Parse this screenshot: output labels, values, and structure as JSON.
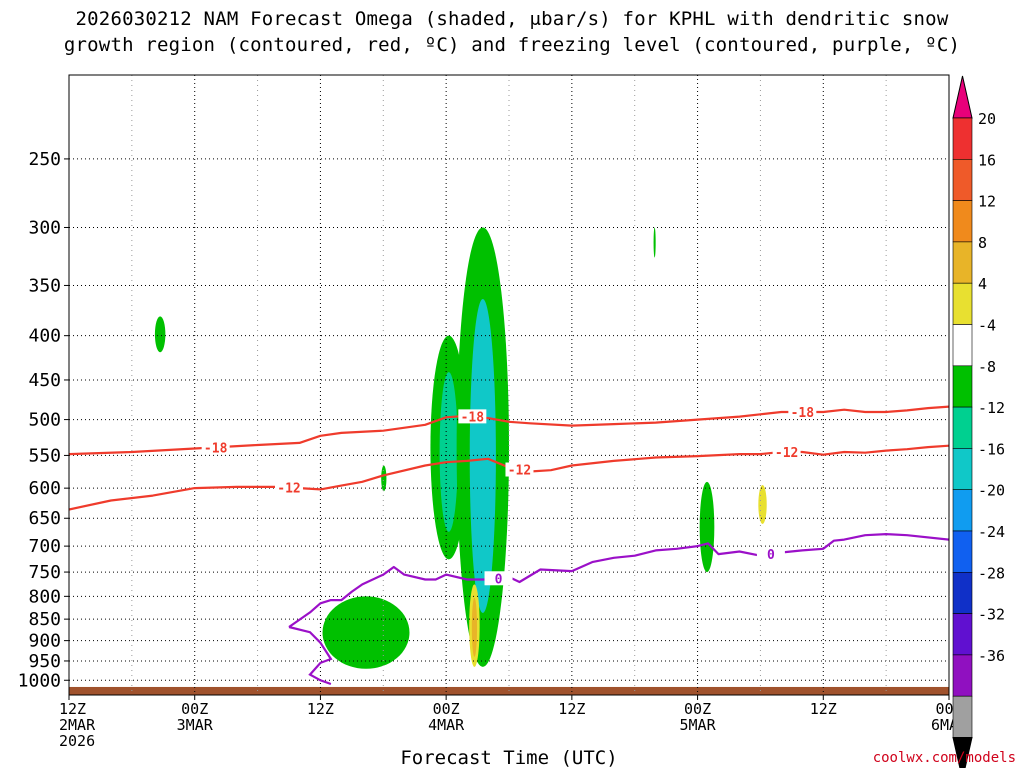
{
  "title_line1": "2026030212 NAM Forecast Omega (shaded, μbar/s) for KPHL with dendritic snow",
  "title_line2": "growth region (contoured, red, ºC) and freezing level (contoured, purple, ºC)",
  "credit": "coolwx.com/models",
  "chart_data": {
    "type": "time-height cross-section",
    "title": "2026030212 NAM Forecast Omega (shaded, μbar/s) for KPHL with dendritic snow growth region (contoured, red, ºC) and freezing level (contoured, purple, ºC)",
    "xlabel": "Forecast Time (UTC)",
    "ylabel": "",
    "xlim": [
      0,
      84
    ],
    "ylim": [
      1040,
      200
    ],
    "yscale": "log",
    "grid": true,
    "x_ticks": [
      {
        "hour": 0,
        "lines": [
          "12Z",
          "2MAR",
          "2026"
        ]
      },
      {
        "hour": 12,
        "lines": [
          "00Z",
          "3MAR"
        ]
      },
      {
        "hour": 24,
        "lines": [
          "12Z"
        ]
      },
      {
        "hour": 36,
        "lines": [
          "00Z",
          "4MAR"
        ]
      },
      {
        "hour": 48,
        "lines": [
          "12Z"
        ]
      },
      {
        "hour": 60,
        "lines": [
          "00Z",
          "5MAR"
        ]
      },
      {
        "hour": 72,
        "lines": [
          "12Z"
        ]
      },
      {
        "hour": 84,
        "lines": [
          "00Z",
          "6MAR"
        ]
      }
    ],
    "y_ticks": [
      250,
      300,
      350,
      400,
      450,
      500,
      550,
      600,
      650,
      700,
      750,
      800,
      850,
      900,
      950,
      1000
    ],
    "colorbar": {
      "labels": [
        "20",
        "16",
        "12",
        "8",
        "4",
        "-4",
        "-8",
        "-12",
        "-16",
        "-20",
        "-24",
        "-28",
        "-32",
        "-36"
      ],
      "colors": [
        "#e8007a",
        "#ee3030",
        "#ef5a29",
        "#f08a1c",
        "#e8b428",
        "#e8e030",
        "#ffffff",
        "#00c000",
        "#00d090",
        "#10c8c8",
        "#109cf0",
        "#1060f0",
        "#1030c8",
        "#6010d0",
        "#9010c0",
        "#a0a0a0",
        "#000000"
      ]
    },
    "contours": [
      {
        "label": "-18",
        "color": "#ef3b2c",
        "x": [
          0,
          6,
          12,
          18,
          22,
          24,
          26,
          30,
          34,
          36,
          38,
          40,
          42,
          44,
          48,
          52,
          56,
          60,
          64,
          66,
          68,
          72,
          74,
          76,
          78,
          80,
          82,
          84
        ],
        "y": [
          548,
          545,
          540,
          535,
          532,
          522,
          518,
          515,
          507,
          497,
          495,
          498,
          503,
          505,
          508,
          506,
          504,
          500,
          496,
          493,
          490,
          490,
          487,
          490,
          490,
          488,
          485,
          483
        ]
      },
      {
        "label": "-12",
        "color": "#ef3b2c",
        "x": [
          0,
          4,
          8,
          12,
          16,
          20,
          24,
          26,
          28,
          30,
          34,
          36,
          38,
          40,
          42,
          44,
          46,
          48,
          52,
          56,
          60,
          64,
          66,
          68,
          70,
          72,
          74,
          76,
          78,
          80,
          82,
          84
        ],
        "y": [
          635,
          620,
          612,
          600,
          598,
          598,
          602,
          596,
          590,
          580,
          565,
          560,
          558,
          555,
          568,
          574,
          572,
          565,
          558,
          553,
          551,
          548,
          548,
          545,
          545,
          549,
          545,
          546,
          543,
          541,
          538,
          536
        ]
      },
      {
        "label": "0",
        "color": "#9b10c8",
        "x": [
          21,
          23,
          24,
          25,
          26,
          27,
          28,
          30,
          31,
          32,
          34,
          35,
          36,
          38,
          40,
          42,
          43,
          45,
          48,
          50,
          52,
          54,
          56,
          58,
          60,
          61,
          62,
          64,
          66,
          68,
          70,
          72,
          73,
          74,
          76,
          78,
          80,
          84
        ],
        "y": [
          868,
          835,
          815,
          808,
          808,
          790,
          775,
          755,
          740,
          755,
          765,
          765,
          755,
          765,
          765,
          760,
          770,
          745,
          748,
          730,
          722,
          718,
          708,
          705,
          700,
          695,
          715,
          710,
          718,
          712,
          708,
          705,
          690,
          688,
          680,
          678,
          680,
          688
        ]
      }
    ],
    "freezing_level_lower": {
      "x": [
        21,
        23,
        24,
        25,
        24,
        23,
        24,
        25
      ],
      "y": [
        868,
        880,
        905,
        945,
        955,
        985,
        1000,
        1010
      ]
    },
    "surface_pressure": 1018,
    "omega_areas": [
      {
        "level": "-4 to -8",
        "t": [
          8.2,
          9.2
        ],
        "p": [
          380,
          418
        ]
      },
      {
        "level": "-4 to -8",
        "t": [
          29.8,
          30.3
        ],
        "p": [
          565,
          605
        ]
      },
      {
        "level": "-4 to -12",
        "t": [
          34.5,
          38.0
        ],
        "p": [
          400,
          725
        ]
      },
      {
        "level": "-4 to -16",
        "t": [
          37.0,
          42.0
        ],
        "p": [
          300,
          965
        ]
      },
      {
        "level": "-4 to -8",
        "t": [
          24.2,
          32.5
        ],
        "p": [
          800,
          970
        ]
      },
      {
        "level": "-4 to -8",
        "t": [
          55.8,
          56.0
        ],
        "p": [
          300,
          325
        ]
      },
      {
        "level": "-4 to -8",
        "t": [
          60.2,
          61.6
        ],
        "p": [
          590,
          750
        ]
      },
      {
        "level": "4 to 8",
        "t": [
          65.8,
          66.6
        ],
        "p": [
          595,
          660
        ]
      },
      {
        "level": "4 to 12",
        "t": [
          38.2,
          39.2
        ],
        "p": [
          775,
          965
        ]
      }
    ]
  }
}
